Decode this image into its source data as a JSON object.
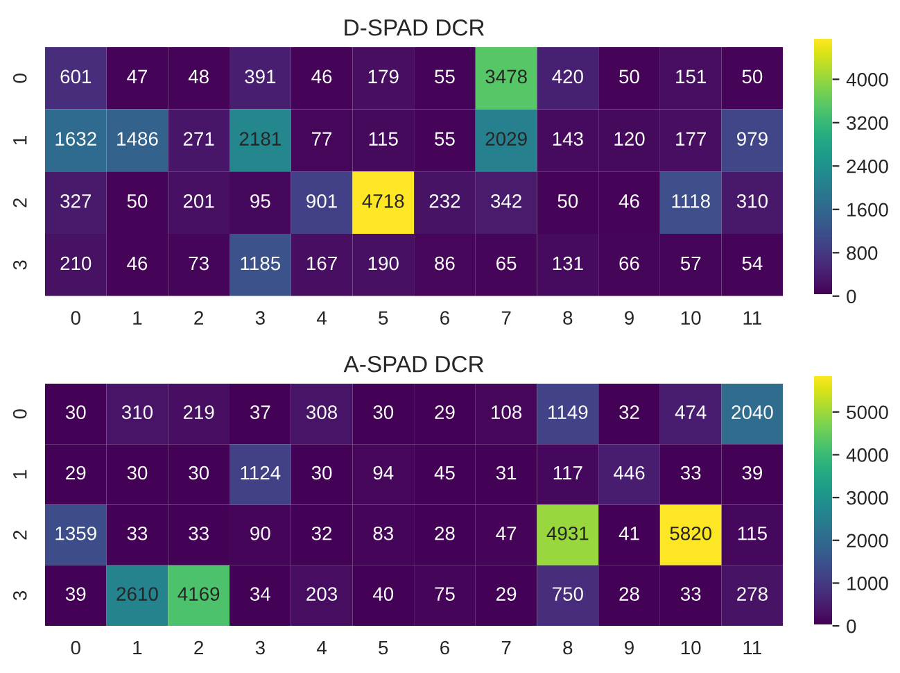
{
  "chart_data": [
    {
      "type": "heatmap",
      "title": "D-SPAD DCR",
      "categories": [
        "0",
        "1",
        "2",
        "3",
        "4",
        "5",
        "6",
        "7",
        "8",
        "9",
        "10",
        "11"
      ],
      "y_categories": [
        "0",
        "1",
        "2",
        "3"
      ],
      "cells": [
        [
          601,
          47,
          48,
          391,
          46,
          179,
          55,
          3478,
          420,
          50,
          151,
          50
        ],
        [
          1632,
          1486,
          271,
          2181,
          77,
          115,
          55,
          2029,
          143,
          120,
          177,
          979
        ],
        [
          327,
          50,
          201,
          95,
          901,
          4718,
          232,
          342,
          50,
          46,
          1118,
          310
        ],
        [
          210,
          46,
          73,
          1185,
          167,
          190,
          86,
          65,
          131,
          66,
          57,
          54
        ]
      ],
      "clim": [
        0,
        4718
      ],
      "cticks": [
        0,
        800,
        1600,
        2400,
        3200,
        4000
      ],
      "data_labels": true
    },
    {
      "type": "heatmap",
      "title": "A-SPAD DCR",
      "categories": [
        "0",
        "1",
        "2",
        "3",
        "4",
        "5",
        "6",
        "7",
        "8",
        "9",
        "10",
        "11"
      ],
      "y_categories": [
        "0",
        "1",
        "2",
        "3"
      ],
      "cells": [
        [
          30,
          310,
          219,
          37,
          308,
          30,
          29,
          108,
          1149,
          32,
          474,
          2040
        ],
        [
          29,
          30,
          30,
          1124,
          30,
          94,
          45,
          31,
          117,
          446,
          33,
          39
        ],
        [
          1359,
          33,
          33,
          90,
          32,
          83,
          28,
          47,
          4931,
          41,
          5820,
          115
        ],
        [
          39,
          2610,
          4169,
          34,
          203,
          40,
          75,
          29,
          750,
          28,
          33,
          278
        ]
      ],
      "clim": [
        0,
        5820
      ],
      "cticks": [
        0,
        1000,
        2000,
        3000,
        4000,
        5000
      ],
      "data_labels": true
    }
  ]
}
